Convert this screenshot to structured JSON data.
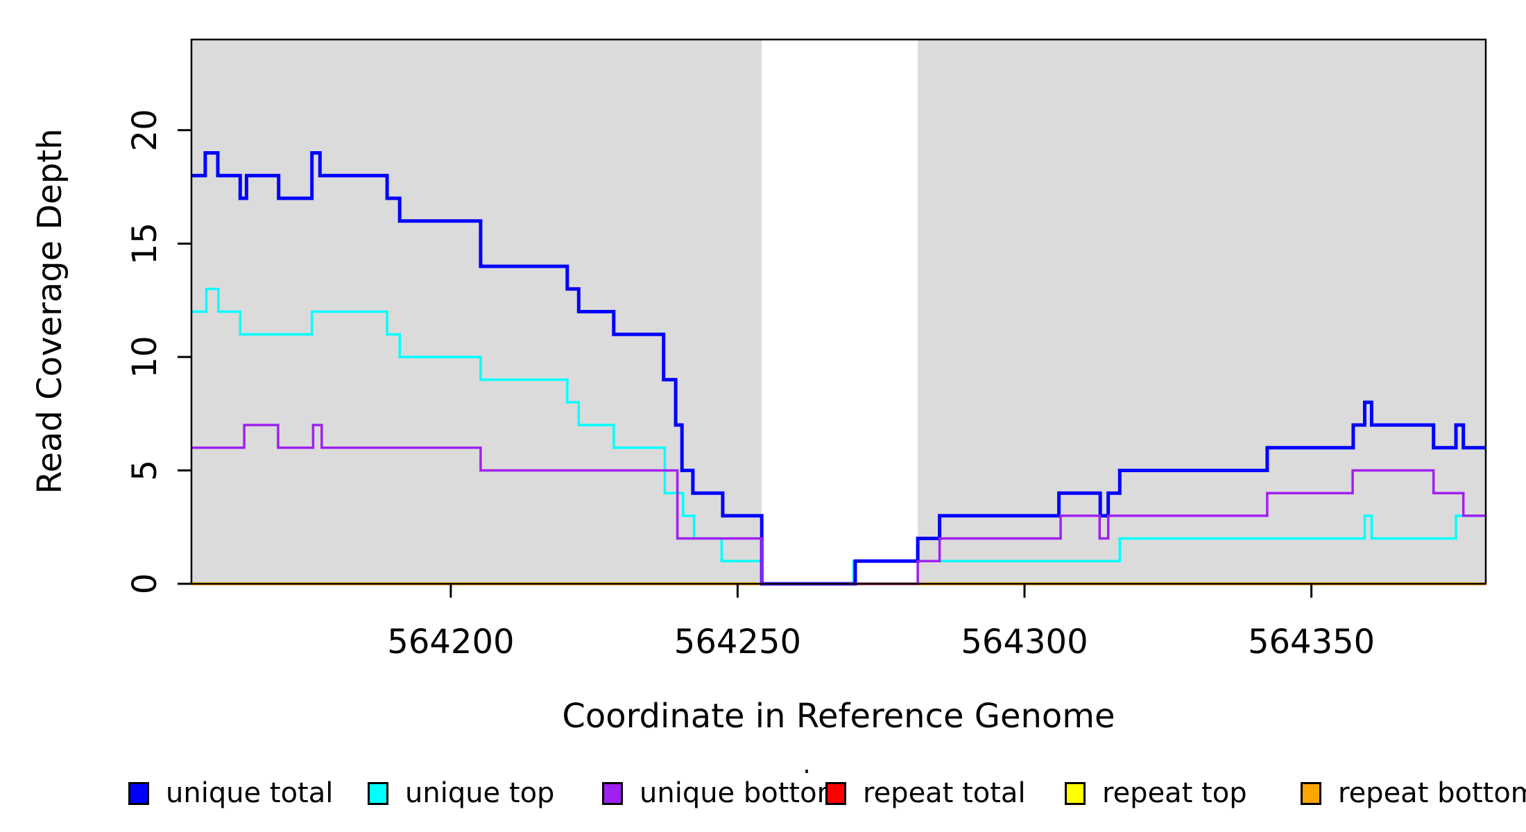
{
  "chart_data": {
    "type": "step-line",
    "title": "",
    "xlabel": "Coordinate in Reference Genome",
    "ylabel": "Read Coverage Depth",
    "xlim": [
      564154.8,
      564380.4
    ],
    "ylim": [
      0,
      24
    ],
    "x_ticks": [
      "564200",
      "564250",
      "564300",
      "564350"
    ],
    "x_tick_values": [
      564200,
      564250,
      564300,
      564350
    ],
    "y_ticks": [
      "0",
      "5",
      "10",
      "15",
      "20"
    ],
    "y_tick_values": [
      0,
      5,
      10,
      15,
      20
    ],
    "grid": false,
    "background_color": "#ffffff",
    "shaded_region_color": "#dbdbdb",
    "shaded_regions": [
      {
        "name": "unique-region-left",
        "x0": 564154.8,
        "x1": 564254.2
      },
      {
        "name": "unique-region-right",
        "x0": 564281.4,
        "x1": 564380.4
      }
    ],
    "series": [
      {
        "name": "repeat total",
        "color": "#FF0000",
        "width": 4,
        "steps": [
          [
            564154.8,
            0
          ],
          [
            564380.4,
            0
          ]
        ]
      },
      {
        "name": "repeat top",
        "color": "#FFFF00",
        "width": 4,
        "steps": [
          [
            564154.8,
            0
          ],
          [
            564380.4,
            0
          ]
        ]
      },
      {
        "name": "repeat bottom",
        "color": "#FFA500",
        "width": 4.5,
        "steps": [
          [
            564154.8,
            0
          ],
          [
            564380.4,
            0
          ]
        ]
      },
      {
        "name": "unique top",
        "color": "#00FFFF",
        "width": 3.5,
        "steps": [
          [
            564154.8,
            12
          ],
          [
            564157.4,
            13
          ],
          [
            564159.5,
            12
          ],
          [
            564163.3,
            11
          ],
          [
            564175.8,
            12
          ],
          [
            564188.9,
            11
          ],
          [
            564191.1,
            10
          ],
          [
            564205.2,
            9
          ],
          [
            564220.3,
            8
          ],
          [
            564222.3,
            7
          ],
          [
            564228.4,
            6
          ],
          [
            564237.3,
            4
          ],
          [
            564240.5,
            3
          ],
          [
            564242.4,
            2
          ],
          [
            564247.2,
            1
          ],
          [
            564254.2,
            0
          ],
          [
            564270.2,
            1
          ],
          [
            564316.6,
            2
          ],
          [
            564359.3,
            3
          ],
          [
            564360.5,
            2
          ],
          [
            564375.2,
            3
          ],
          [
            564380.4,
            3
          ]
        ]
      },
      {
        "name": "unique total",
        "color": "#0000FF",
        "width": 5,
        "steps": [
          [
            564154.8,
            18
          ],
          [
            564157.2,
            19
          ],
          [
            564159.4,
            18
          ],
          [
            564163.3,
            17
          ],
          [
            564164.4,
            18
          ],
          [
            564170.0,
            17
          ],
          [
            564175.8,
            19
          ],
          [
            564177.2,
            18
          ],
          [
            564188.9,
            17
          ],
          [
            564191.1,
            16
          ],
          [
            564205.2,
            14
          ],
          [
            564220.3,
            13
          ],
          [
            564222.3,
            12
          ],
          [
            564228.4,
            11
          ],
          [
            564237.1,
            9
          ],
          [
            564239.2,
            7
          ],
          [
            564240.3,
            5
          ],
          [
            564242.2,
            4
          ],
          [
            564247.4,
            3
          ],
          [
            564254.2,
            0
          ],
          [
            564270.5,
            1
          ],
          [
            564281.4,
            2
          ],
          [
            564285.2,
            3
          ],
          [
            564306.0,
            4
          ],
          [
            564313.2,
            3
          ],
          [
            564314.6,
            4
          ],
          [
            564316.6,
            5
          ],
          [
            564342.3,
            6
          ],
          [
            564357.3,
            7
          ],
          [
            564359.3,
            8
          ],
          [
            564360.5,
            7
          ],
          [
            564371.3,
            6
          ],
          [
            564375.2,
            7
          ],
          [
            564376.5,
            6
          ],
          [
            564380.4,
            6
          ]
        ]
      },
      {
        "name": "unique bottom",
        "color": "#A020F0",
        "width": 3.5,
        "steps": [
          [
            564154.8,
            6
          ],
          [
            564164.0,
            7
          ],
          [
            564169.9,
            6
          ],
          [
            564176.0,
            7
          ],
          [
            564177.5,
            6
          ],
          [
            564205.2,
            5
          ],
          [
            564239.5,
            2
          ],
          [
            564254.2,
            0
          ],
          [
            564281.4,
            1
          ],
          [
            564285.2,
            2
          ],
          [
            564306.3,
            3
          ],
          [
            564313.1,
            2
          ],
          [
            564314.6,
            3
          ],
          [
            564342.3,
            4
          ],
          [
            564357.2,
            5
          ],
          [
            564371.3,
            4
          ],
          [
            564376.5,
            3
          ],
          [
            564380.4,
            3
          ]
        ]
      }
    ],
    "legend": {
      "position": "bottom",
      "items": [
        {
          "label": "unique total",
          "color": "#0000FF"
        },
        {
          "label": "unique top",
          "color": "#00FFFF"
        },
        {
          "label": "unique bottom",
          "color": "#A020F0"
        },
        {
          "label": "repeat total",
          "color": "#FF0000"
        },
        {
          "label": "repeat top",
          "color": "#FFFF00"
        },
        {
          "label": "repeat bottom",
          "color": "#FFA500"
        }
      ]
    }
  }
}
